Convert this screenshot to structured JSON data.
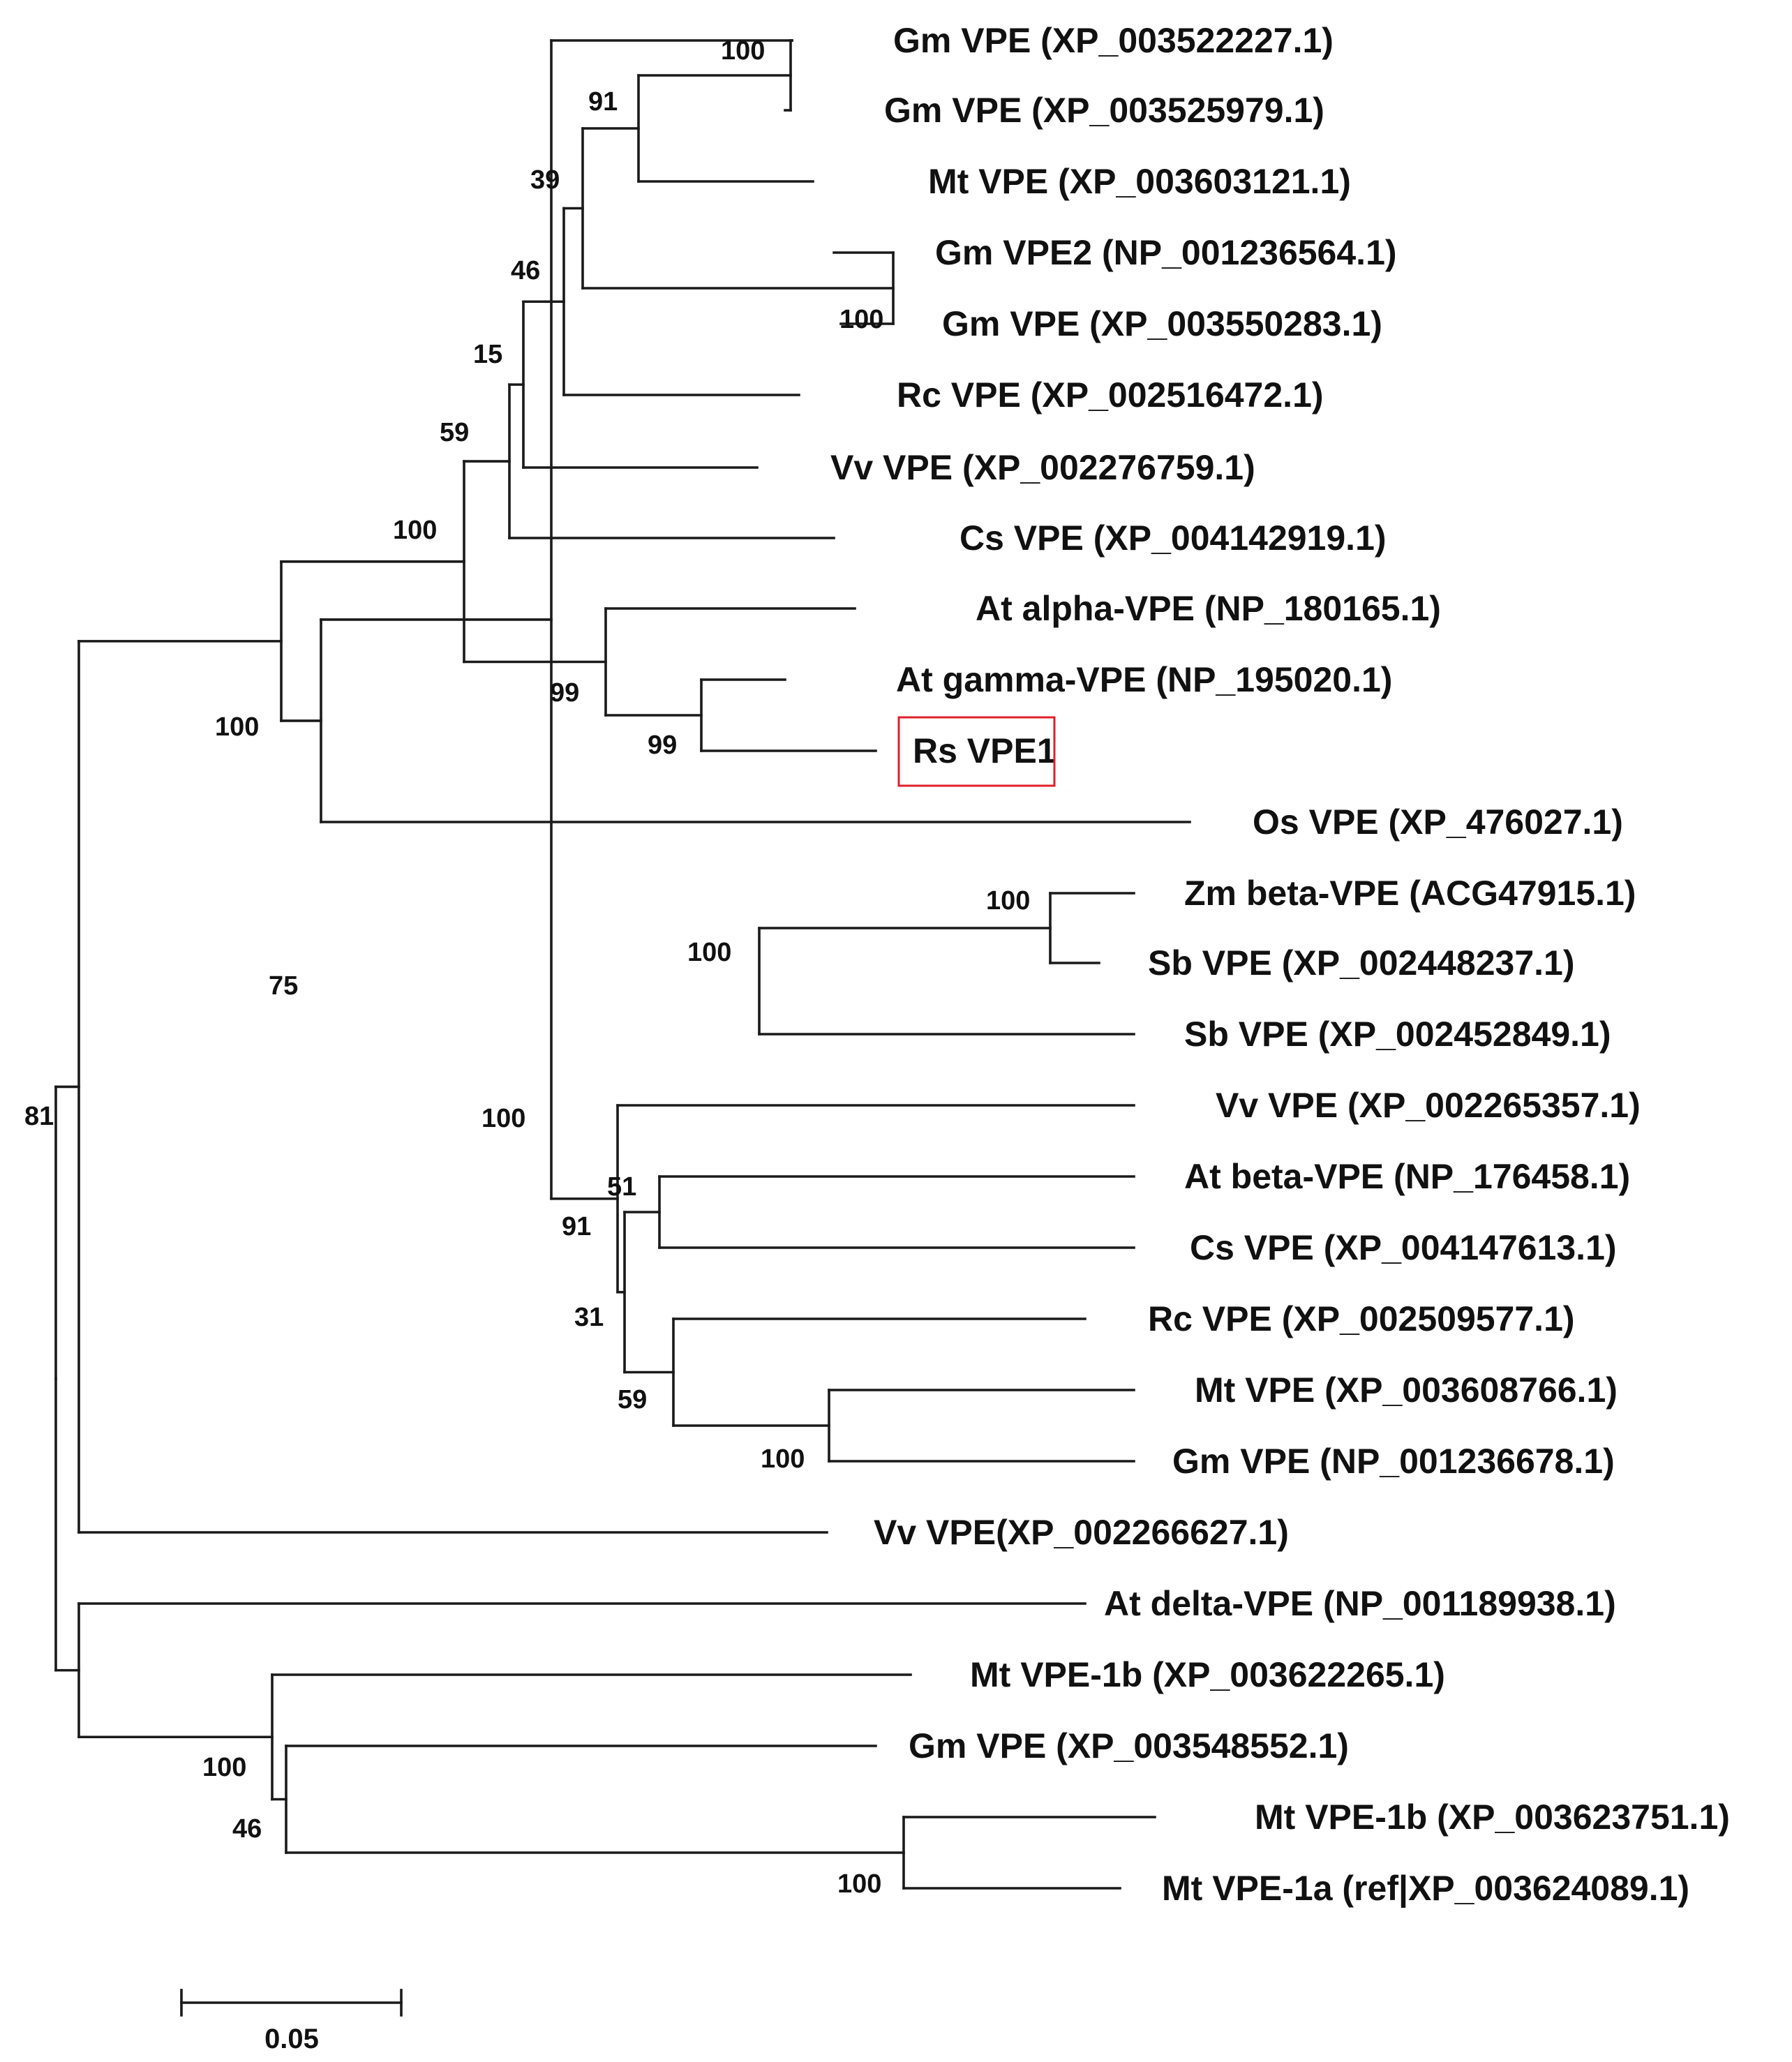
{
  "figure": {
    "type": "phylogenetic-tree",
    "highlight_color": "#e0202a",
    "line_color": "#1a1a1a"
  },
  "leaves": [
    "Gm VPE (XP_003522227.1)",
    "Gm VPE (XP_003525979.1)",
    "Mt VPE (XP_003603121.1)",
    "Gm VPE2 (NP_001236564.1)",
    "Gm VPE (XP_003550283.1)",
    "Rc VPE (XP_002516472.1)",
    "Vv VPE (XP_002276759.1)",
    "Cs VPE (XP_004142919.1)",
    "At alpha-VPE (NP_180165.1)",
    "At gamma-VPE (NP_195020.1)",
    "Rs VPE1",
    "Os VPE (XP_476027.1)",
    "Zm beta-VPE (ACG47915.1)",
    "Sb VPE (XP_002448237.1)",
    "Sb VPE (XP_002452849.1)",
    "Vv VPE (XP_002265357.1)",
    "At beta-VPE (NP_176458.1)",
    "Cs VPE (XP_004147613.1)",
    "Rc VPE (XP_002509577.1)",
    "Mt VPE (XP_003608766.1)",
    "Gm VPE (NP_001236678.1)",
    "Vv VPE(XP_002266627.1)",
    "At delta-VPE (NP_001189938.1)",
    "Mt VPE-1b (XP_003622265.1)",
    "Gm VPE (XP_003548552.1)",
    "Mt VPE-1b (XP_003623751.1)",
    "Mt VPE-1a (ref|XP_003624089.1)"
  ],
  "highlighted_leaf": "Rs VPE1",
  "bootstrap": [
    "100",
    "91",
    "39",
    "100",
    "46",
    "15",
    "59",
    "100",
    "99",
    "99",
    "100",
    "100",
    "100",
    "75",
    "100",
    "51",
    "91",
    "31",
    "59",
    "100",
    "81",
    "100",
    "46",
    "100"
  ],
  "scale_bar": {
    "label": "0.05",
    "value": 0.05
  }
}
